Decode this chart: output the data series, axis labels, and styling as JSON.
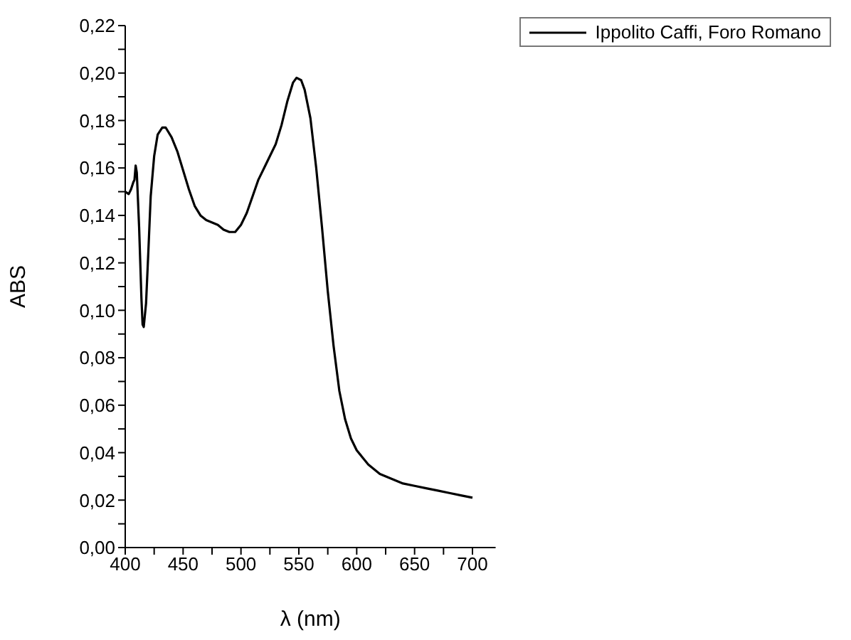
{
  "chart_data": {
    "type": "line",
    "xlabel": "λ (nm)",
    "ylabel": "ABS",
    "x": [
      400,
      403,
      405,
      407,
      408,
      409,
      410,
      412,
      414,
      415,
      416,
      418,
      420,
      422,
      425,
      428,
      432,
      435,
      440,
      445,
      450,
      455,
      460,
      465,
      470,
      480,
      485,
      490,
      495,
      500,
      505,
      510,
      515,
      520,
      525,
      530,
      535,
      540,
      545,
      548,
      552,
      555,
      560,
      565,
      570,
      575,
      580,
      585,
      590,
      595,
      600,
      610,
      620,
      630,
      640,
      650,
      660,
      670,
      680,
      690,
      700
    ],
    "series": [
      {
        "name": "Ippolito Caffi, Foro Romano",
        "color": "#000000",
        "values": [
          0.15,
          0.149,
          0.151,
          0.154,
          0.155,
          0.161,
          0.158,
          0.135,
          0.105,
          0.094,
          0.093,
          0.103,
          0.125,
          0.148,
          0.165,
          0.174,
          0.177,
          0.177,
          0.173,
          0.167,
          0.159,
          0.151,
          0.144,
          0.14,
          0.138,
          0.136,
          0.134,
          0.133,
          0.133,
          0.136,
          0.141,
          0.148,
          0.155,
          0.16,
          0.165,
          0.17,
          0.178,
          0.188,
          0.196,
          0.198,
          0.197,
          0.193,
          0.181,
          0.16,
          0.135,
          0.108,
          0.085,
          0.066,
          0.054,
          0.046,
          0.041,
          0.035,
          0.031,
          0.029,
          0.027,
          0.026,
          0.025,
          0.024,
          0.023,
          0.022,
          0.021
        ]
      }
    ],
    "xlim": [
      400,
      720
    ],
    "xticks": [
      400,
      {
        "value": 425,
        "label": null
      },
      450,
      {
        "value": 475,
        "label": null
      },
      500,
      {
        "value": 525,
        "label": null
      },
      550,
      {
        "value": 575,
        "label": null
      },
      600,
      {
        "value": 625,
        "label": null
      },
      650,
      {
        "value": 675,
        "label": null
      },
      700
    ],
    "ylim": [
      0,
      0.22
    ],
    "yticks": [
      {
        "value": 0,
        "label": "0,00"
      },
      {
        "value": 0.01,
        "label": null
      },
      {
        "value": 0.02,
        "label": "0,02"
      },
      {
        "value": 0.03,
        "label": null
      },
      {
        "value": 0.04,
        "label": "0,04"
      },
      {
        "value": 0.05,
        "label": null
      },
      {
        "value": 0.06,
        "label": "0,06"
      },
      {
        "value": 0.07,
        "label": null
      },
      {
        "value": 0.08,
        "label": "0,08"
      },
      {
        "value": 0.09,
        "label": null
      },
      {
        "value": 0.1,
        "label": "0,10"
      },
      {
        "value": 0.11,
        "label": null
      },
      {
        "value": 0.12,
        "label": "0,12"
      },
      {
        "value": 0.13,
        "label": null
      },
      {
        "value": 0.14,
        "label": "0,14"
      },
      {
        "value": 0.15,
        "label": null
      },
      {
        "value": 0.16,
        "label": "0,16"
      },
      {
        "value": 0.17,
        "label": null
      },
      {
        "value": 0.18,
        "label": "0,18"
      },
      {
        "value": 0.19,
        "label": null
      },
      {
        "value": 0.2,
        "label": "0,20"
      },
      {
        "value": 0.21,
        "label": null
      },
      {
        "value": 0.22,
        "label": "0,22"
      }
    ],
    "grid": false,
    "legend": "top right",
    "marker": "none",
    "line_style": "solid"
  }
}
